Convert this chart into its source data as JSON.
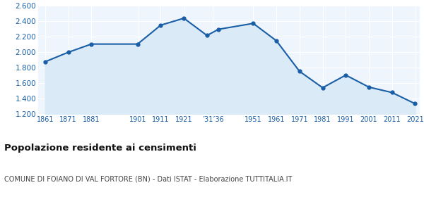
{
  "years": [
    1861,
    1871,
    1881,
    1901,
    1911,
    1921,
    1931,
    1936,
    1951,
    1961,
    1971,
    1981,
    1991,
    2001,
    2011,
    2021
  ],
  "population": [
    1878,
    2001,
    2107,
    2107,
    2351,
    2441,
    2218,
    2298,
    2374,
    2150,
    1755,
    1543,
    1706,
    1551,
    1481,
    1336
  ],
  "line_color": "#1a5ea6",
  "fill_color": "#daeaf7",
  "marker_size": 3.5,
  "line_width": 1.5,
  "ylim": [
    1200,
    2600
  ],
  "yticks": [
    1200,
    1400,
    1600,
    1800,
    2000,
    2200,
    2400,
    2600
  ],
  "title": "Popolazione residente ai censimenti",
  "subtitle": "COMUNE DI FOIANO DI VAL FORTORE (BN) - Dati ISTAT - Elaborazione TUTTITALIA.IT",
  "title_fontsize": 9.5,
  "subtitle_fontsize": 7.0,
  "bg_color": "#eef5fc",
  "grid_color": "#ffffff",
  "tick_label_color": "#1a5ea6",
  "x_tick_positions": [
    1861,
    1871,
    1881,
    1901,
    1911,
    1921,
    1933.5,
    1951,
    1961,
    1971,
    1981,
    1991,
    2001,
    2011,
    2021
  ],
  "x_tick_labels": [
    "1861",
    "1871",
    "1881",
    "1901",
    "1911",
    "1921",
    "’31’36",
    "1951",
    "1961",
    "1971",
    "1981",
    "1991",
    "2001",
    "2011",
    "2021"
  ]
}
